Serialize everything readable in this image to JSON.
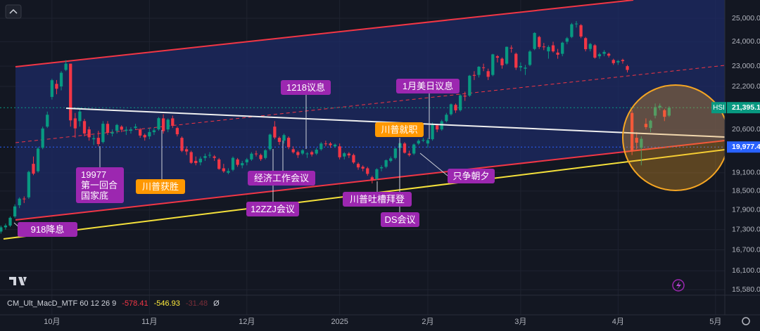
{
  "chart_data": {
    "type": "candlestick",
    "symbol": "HSI",
    "log_scale": true,
    "grid": true,
    "up_color": "#089981",
    "down_color": "#f23645",
    "ylim": [
      15470,
      25810
    ],
    "yticks": [
      {
        "value": 15580,
        "label": "15,580.0"
      },
      {
        "value": 16100,
        "label": "16,100.0"
      },
      {
        "value": 16700,
        "label": "16,700.0"
      },
      {
        "value": 17300,
        "label": "17,300.0"
      },
      {
        "value": 17900,
        "label": "17,900.0"
      },
      {
        "value": 18500,
        "label": "18,500.0"
      },
      {
        "value": 19100,
        "label": "19,100.0"
      },
      {
        "value": 20600,
        "label": "20,600.0"
      },
      {
        "value": 22200,
        "label": "22,200.0"
      },
      {
        "value": 23000,
        "label": "23,000.0"
      },
      {
        "value": 24000,
        "label": "24,000.0"
      },
      {
        "value": 25000,
        "label": "25,000.0"
      }
    ],
    "xlim": [
      -0.2,
      156
    ],
    "xticks": [
      {
        "value": 11,
        "label": "10月"
      },
      {
        "value": 32,
        "label": "11月"
      },
      {
        "value": 53,
        "label": "12月"
      },
      {
        "value": 73,
        "label": "2025"
      },
      {
        "value": 92,
        "label": "2月"
      },
      {
        "value": 112,
        "label": "3月"
      },
      {
        "value": 133,
        "label": "4月"
      },
      {
        "value": 154,
        "label": "5月"
      }
    ],
    "price_lines": [
      {
        "value": 21395.1,
        "label": "21,395.1",
        "color": "#089981"
      },
      {
        "value": 19977.4,
        "label": "19,977.4",
        "color": "#2962ff"
      }
    ],
    "candles": [
      [
        17240,
        17420,
        17180,
        17369
      ],
      [
        17369,
        17480,
        17300,
        17422
      ],
      [
        17422,
        17700,
        17380,
        17660
      ],
      [
        17700,
        18080,
        17650,
        18013
      ],
      [
        18050,
        18300,
        17960,
        18258
      ],
      [
        18260,
        18330,
        18120,
        18247
      ],
      [
        18300,
        19170,
        18250,
        19129
      ],
      [
        19400,
        19650,
        19020,
        19071
      ],
      [
        19150,
        19980,
        19100,
        19924
      ],
      [
        19950,
        20700,
        19900,
        20632
      ],
      [
        20700,
        21250,
        20650,
        21133
      ],
      [
        21800,
        22500,
        21700,
        22443
      ],
      [
        22300,
        22450,
        21900,
        22113
      ],
      [
        22200,
        22800,
        22050,
        22736
      ],
      [
        22850,
        23240,
        22800,
        23099
      ],
      [
        23100,
        23100,
        20700,
        20926
      ],
      [
        21000,
        21200,
        20300,
        20637
      ],
      [
        20900,
        21400,
        20700,
        21251
      ],
      [
        20900,
        20980,
        20350,
        20454
      ],
      [
        20600,
        20700,
        20200,
        20318
      ],
      [
        20250,
        20400,
        20050,
        20286
      ],
      [
        20300,
        20550,
        20000,
        20079
      ],
      [
        20150,
        20900,
        20100,
        20804
      ],
      [
        20800,
        20900,
        20400,
        20478
      ],
      [
        20450,
        20600,
        20350,
        20498
      ],
      [
        20550,
        20800,
        20450,
        20760
      ],
      [
        20700,
        20750,
        20500,
        20590
      ],
      [
        20550,
        20700,
        20400,
        20590
      ],
      [
        20550,
        20680,
        20450,
        20599
      ],
      [
        20650,
        20800,
        20600,
        20701
      ],
      [
        20600,
        20650,
        20300,
        20380
      ],
      [
        20400,
        20450,
        20200,
        20317
      ],
      [
        20350,
        20650,
        20250,
        20506
      ],
      [
        20500,
        20650,
        20400,
        20567
      ],
      [
        20600,
        21050,
        20550,
        21006
      ],
      [
        21000,
        21150,
        20450,
        20538
      ],
      [
        20600,
        21000,
        20500,
        20953
      ],
      [
        21000,
        21100,
        20650,
        20728
      ],
      [
        20650,
        20700,
        20350,
        20426
      ],
      [
        20300,
        20350,
        19800,
        19846
      ],
      [
        19900,
        20000,
        19700,
        19823
      ],
      [
        19800,
        19850,
        19400,
        19435
      ],
      [
        19500,
        19650,
        19350,
        19426
      ],
      [
        19450,
        19650,
        19350,
        19576
      ],
      [
        19600,
        19750,
        19500,
        19663
      ],
      [
        19700,
        19800,
        19600,
        19705
      ],
      [
        19650,
        19700,
        19500,
        19601
      ],
      [
        19550,
        19600,
        19200,
        19230
      ],
      [
        19250,
        19400,
        19100,
        19151
      ],
      [
        19100,
        19250,
        19050,
        19159
      ],
      [
        19200,
        19650,
        19150,
        19603
      ],
      [
        19550,
        19600,
        19300,
        19366
      ],
      [
        19350,
        19500,
        19250,
        19424
      ],
      [
        19450,
        19600,
        19350,
        19550
      ],
      [
        19550,
        19800,
        19500,
        19746
      ],
      [
        19750,
        19850,
        19650,
        19742
      ],
      [
        19700,
        19750,
        19500,
        19560
      ],
      [
        19600,
        19900,
        19550,
        19865
      ],
      [
        19900,
        20450,
        19850,
        20414
      ],
      [
        20700,
        20900,
        20250,
        20311
      ],
      [
        20300,
        20350,
        20050,
        20155
      ],
      [
        20200,
        20450,
        20100,
        20397
      ],
      [
        20300,
        20350,
        19900,
        19971
      ],
      [
        19900,
        20000,
        19750,
        19795
      ],
      [
        19800,
        19850,
        19600,
        19700
      ],
      [
        19750,
        19900,
        19700,
        19864
      ],
      [
        19750,
        19800,
        19600,
        19752
      ],
      [
        19800,
        19850,
        19650,
        19720
      ],
      [
        19750,
        19950,
        19700,
        19883
      ],
      [
        19900,
        20150,
        19850,
        20098
      ],
      [
        20100,
        20200,
        20000,
        20090
      ],
      [
        20100,
        20150,
        19950,
        20041
      ],
      [
        20000,
        20100,
        19950,
        20060
      ],
      [
        20000,
        20100,
        19550,
        19623
      ],
      [
        19650,
        19800,
        19550,
        19760
      ],
      [
        19750,
        19800,
        19600,
        19688
      ],
      [
        19700,
        19750,
        19400,
        19447
      ],
      [
        19400,
        19450,
        19200,
        19280
      ],
      [
        19300,
        19350,
        19150,
        19240
      ],
      [
        19250,
        19300,
        19000,
        19064
      ],
      [
        18950,
        19000,
        18750,
        18874
      ],
      [
        18900,
        19250,
        18850,
        19219
      ],
      [
        19250,
        19350,
        19150,
        19286
      ],
      [
        19300,
        19550,
        19250,
        19522
      ],
      [
        19500,
        19650,
        19450,
        19584
      ],
      [
        19600,
        19950,
        19550,
        19926
      ],
      [
        19950,
        20150,
        19850,
        20107
      ],
      [
        20100,
        20150,
        19750,
        19778
      ],
      [
        19750,
        19850,
        19650,
        19700
      ],
      [
        19750,
        20100,
        19700,
        20066
      ],
      [
        20100,
        20250,
        20050,
        20197
      ],
      [
        20200,
        20300,
        20150,
        20225
      ],
      [
        20100,
        20300,
        19950,
        20217
      ],
      [
        20250,
        20850,
        20200,
        20790
      ],
      [
        20750,
        20800,
        20500,
        20597
      ],
      [
        20600,
        20950,
        20550,
        20891
      ],
      [
        20900,
        21200,
        20850,
        21133
      ],
      [
        21150,
        21550,
        21100,
        21522
      ],
      [
        21500,
        21550,
        21200,
        21294
      ],
      [
        21300,
        21900,
        21250,
        21857
      ],
      [
        21850,
        22000,
        21650,
        21814
      ],
      [
        21850,
        22650,
        21800,
        22620
      ],
      [
        22650,
        22800,
        22450,
        22616
      ],
      [
        22650,
        23000,
        22550,
        22976
      ],
      [
        22950,
        23100,
        22800,
        22944
      ],
      [
        22800,
        22900,
        22450,
        22576
      ],
      [
        22650,
        23500,
        22600,
        23478
      ],
      [
        23400,
        23450,
        23150,
        23341
      ],
      [
        23300,
        23350,
        22900,
        23034
      ],
      [
        23100,
        23800,
        23050,
        23787
      ],
      [
        23750,
        23850,
        23550,
        23718
      ],
      [
        23500,
        23550,
        22850,
        22941
      ],
      [
        22950,
        23150,
        22800,
        23006
      ],
      [
        22900,
        23050,
        22650,
        22941
      ],
      [
        23050,
        23650,
        23000,
        23595
      ],
      [
        23700,
        24400,
        23650,
        24370
      ],
      [
        24200,
        24250,
        23700,
        23783
      ],
      [
        23800,
        23950,
        23650,
        23783
      ],
      [
        23600,
        23850,
        23300,
        23782
      ],
      [
        23850,
        24000,
        23550,
        23600
      ],
      [
        23550,
        23700,
        23300,
        23462
      ],
      [
        23500,
        24000,
        23400,
        23959
      ],
      [
        24000,
        24200,
        23900,
        24145
      ],
      [
        24200,
        24800,
        24150,
        24740
      ],
      [
        24750,
        24880,
        24600,
        24771
      ],
      [
        24700,
        24750,
        24150,
        24219
      ],
      [
        24150,
        24200,
        23600,
        23689
      ],
      [
        23700,
        23950,
        23600,
        23905
      ],
      [
        23850,
        23900,
        23300,
        23344
      ],
      [
        23400,
        23550,
        23300,
        23483
      ],
      [
        23500,
        23650,
        23400,
        23578
      ],
      [
        23500,
        23550,
        23350,
        23426
      ],
      [
        23250,
        23300,
        23050,
        23120
      ],
      [
        23150,
        23250,
        23050,
        23206
      ],
      [
        23250,
        23300,
        23100,
        23202
      ],
      [
        23000,
        23050,
        22750,
        22849
      ],
      [
        21200,
        21300,
        19700,
        19828
      ],
      [
        20300,
        20500,
        19900,
        20128
      ],
      [
        19950,
        20350,
        19350,
        20264
      ],
      [
        20800,
        21000,
        20600,
        20681
      ],
      [
        20650,
        20950,
        20500,
        20915
      ],
      [
        21100,
        21550,
        21000,
        21417
      ],
      [
        21400,
        21550,
        21300,
        21466
      ],
      [
        21300,
        21350,
        20900,
        21057
      ],
      [
        21100,
        21450,
        21050,
        21395
      ]
    ],
    "annotations": [
      {
        "text": [
          "918降息"
        ],
        "color": "#9c27b0"
      },
      {
        "text": [
          "19977",
          "第一回合",
          "国家底"
        ],
        "color": "#9c27b0"
      },
      {
        "text": [
          "川普获胜"
        ],
        "color": "#ff9800"
      },
      {
        "text": [
          "1218议息"
        ],
        "color": "#9c27b0"
      },
      {
        "text": [
          "经济工作会议"
        ],
        "color": "#9c27b0"
      },
      {
        "text": [
          "12ZZJ会议"
        ],
        "color": "#9c27b0"
      },
      {
        "text": [
          "1月美日议息"
        ],
        "color": "#9c27b0"
      },
      {
        "text": [
          "川普就职"
        ],
        "color": "#ff9800"
      },
      {
        "text": [
          "川普吐槽拜登"
        ],
        "color": "#9c27b0"
      },
      {
        "text": [
          "DS会议"
        ],
        "color": "#9c27b0"
      },
      {
        "text": [
          "只争朝夕"
        ],
        "color": "#9c27b0"
      }
    ],
    "indicator": {
      "name": "CM_Ult_MacD_MTF 60 12 26 9",
      "values": [
        -578.41,
        -546.93,
        -31.48
      ],
      "value_labels": [
        "-578.41",
        "-546.93",
        "-31.48"
      ],
      "colors": [
        "#f23645",
        "#ffeb3b",
        "#7a2e38"
      ],
      "suffix": "Ø"
    }
  }
}
